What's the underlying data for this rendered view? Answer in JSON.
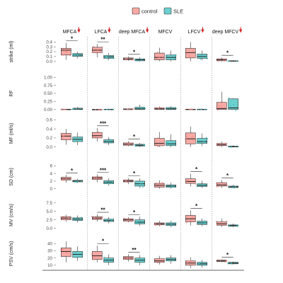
{
  "chart_data": {
    "type": "box",
    "legend": {
      "position": "top",
      "entries": [
        {
          "name": "control",
          "color": "#F8A9A4"
        },
        {
          "name": "SLE",
          "color": "#6CCFCF"
        }
      ]
    },
    "down_arrow_color": "#D62728",
    "columns": [
      {
        "label": "MFCA",
        "arrow": true
      },
      {
        "label": "LFCA",
        "arrow": true
      },
      {
        "label": "deep MFCA",
        "arrow": true
      },
      {
        "label": "MFCV",
        "arrow": false
      },
      {
        "label": "LFCV",
        "arrow": true
      },
      {
        "label": "deep MFCV",
        "arrow": true
      }
    ],
    "rows": [
      {
        "label": "strike (ml)",
        "ylim": [
          -0.05,
          0.45
        ],
        "ticks": [
          "0.0",
          "0.1",
          "0.2",
          "0.3",
          "0.4"
        ],
        "tick_values": [
          0.0,
          0.1,
          0.2,
          0.3,
          0.4
        ],
        "panels": [
          {
            "control": [
              0.03,
              0.13,
              0.23,
              0.27,
              0.38
            ],
            "SLE": [
              0.06,
              0.1,
              0.13,
              0.16,
              0.2
            ],
            "sig": "*"
          },
          {
            "control": [
              0.08,
              0.18,
              0.23,
              0.29,
              0.36
            ],
            "SLE": [
              0.02,
              0.06,
              0.09,
              0.12,
              0.17
            ],
            "sig": "**"
          },
          {
            "control": [
              0.01,
              0.03,
              0.05,
              0.07,
              0.1
            ],
            "SLE": [
              0.0,
              0.01,
              0.03,
              0.05,
              0.08
            ],
            "sig": "*"
          },
          {
            "control": [
              0.0,
              0.03,
              0.08,
              0.17,
              0.28
            ],
            "SLE": [
              0.0,
              0.03,
              0.08,
              0.13,
              0.22
            ],
            "sig": ""
          },
          {
            "control": [
              0.0,
              0.07,
              0.18,
              0.27,
              0.4
            ],
            "SLE": [
              0.02,
              0.06,
              0.1,
              0.15,
              0.22
            ],
            "sig": ""
          },
          {
            "control": [
              0.0,
              0.01,
              0.03,
              0.05,
              0.08
            ],
            "SLE": [
              0.0,
              0.0,
              0.005,
              0.01,
              0.02
            ],
            "sig": "*"
          }
        ]
      },
      {
        "label": "RF",
        "ylim": [
          -0.05,
          1.05
        ],
        "ticks": [
          "0.00",
          "0.25",
          "0.50",
          "0.75",
          "1.00"
        ],
        "tick_values": [
          0.0,
          0.25,
          0.5,
          0.75,
          1.0
        ],
        "panels": [
          {
            "control": [
              0.0,
              0.0,
              0.0,
              0.01,
              0.02
            ],
            "SLE": [
              0.0,
              0.0,
              0.01,
              0.04,
              0.08
            ],
            "sig": ""
          },
          {
            "control": [
              0.0,
              0.0,
              0.0,
              0.0,
              0.01
            ],
            "SLE": [
              0.0,
              0.0,
              0.0,
              0.01,
              0.02
            ],
            "sig": ""
          },
          {
            "control": [
              0.0,
              0.0,
              0.0,
              0.02,
              0.04
            ],
            "SLE": [
              0.0,
              0.0,
              0.02,
              0.07,
              0.15
            ],
            "sig": ""
          },
          {
            "control": [
              0.0,
              0.0,
              0.02,
              0.05,
              0.09
            ],
            "SLE": [
              0.0,
              0.0,
              0.02,
              0.06,
              0.1
            ],
            "sig": ""
          },
          {
            "control": [
              0.0,
              0.0,
              0.0,
              0.01,
              0.02
            ],
            "SLE": [
              0.0,
              0.0,
              0.0,
              0.01,
              0.02
            ],
            "sig": ""
          },
          {
            "control": [
              0.0,
              0.0,
              0.03,
              0.22,
              0.55
            ],
            "SLE": [
              0.0,
              0.0,
              0.05,
              0.33,
              0.35
            ],
            "sig": ""
          }
        ]
      },
      {
        "label": "MF (ml/s)",
        "ylim": [
          -0.05,
          0.65
        ],
        "ticks": [
          "0.0",
          "0.2",
          "0.4",
          "0.6"
        ],
        "tick_values": [
          0.0,
          0.2,
          0.4,
          0.6
        ],
        "panels": [
          {
            "control": [
              0.05,
              0.16,
              0.24,
              0.3,
              0.4
            ],
            "SLE": [
              0.04,
              0.12,
              0.17,
              0.22,
              0.32
            ],
            "sig": ""
          },
          {
            "control": [
              0.12,
              0.2,
              0.25,
              0.32,
              0.42
            ],
            "SLE": [
              0.04,
              0.09,
              0.12,
              0.16,
              0.22
            ],
            "sig": "***"
          },
          {
            "control": [
              0.02,
              0.04,
              0.06,
              0.09,
              0.13
            ],
            "SLE": [
              0.0,
              0.02,
              0.04,
              0.06,
              0.09
            ],
            "sig": "*"
          },
          {
            "control": [
              0.0,
              0.03,
              0.08,
              0.19,
              0.33
            ],
            "SLE": [
              0.0,
              0.03,
              0.07,
              0.14,
              0.28
            ],
            "sig": ""
          },
          {
            "control": [
              0.0,
              0.07,
              0.18,
              0.31,
              0.45
            ],
            "SLE": [
              0.02,
              0.08,
              0.12,
              0.19,
              0.3
            ],
            "sig": ""
          },
          {
            "control": [
              0.0,
              0.03,
              0.05,
              0.08,
              0.12
            ],
            "SLE": [
              0.0,
              0.0,
              0.01,
              0.02,
              0.03
            ],
            "sig": ""
          }
        ]
      },
      {
        "label": "SD (cm)",
        "ylim": [
          -0.6,
          6.8
        ],
        "ticks": [
          "0",
          "2",
          "4",
          "6"
        ],
        "tick_values": [
          0,
          2,
          4,
          6
        ],
        "panels": [
          {
            "control": [
              1.6,
              2.3,
              2.6,
              3.0,
              3.6
            ],
            "SLE": [
              1.5,
              1.8,
              2.0,
              2.2,
              2.6
            ],
            "sig": "*"
          },
          {
            "control": [
              1.7,
              2.4,
              2.8,
              3.1,
              3.7
            ],
            "SLE": [
              0.8,
              1.3,
              1.7,
              2.1,
              2.7
            ],
            "sig": "***"
          },
          {
            "control": [
              1.2,
              1.8,
              2.0,
              2.3,
              2.8
            ],
            "SLE": [
              0.2,
              0.7,
              1.3,
              2.0,
              2.7
            ],
            "sig": "*"
          },
          {
            "control": [
              0.0,
              0.4,
              0.9,
              1.4,
              2.2
            ],
            "SLE": [
              0.1,
              0.4,
              0.7,
              1.0,
              1.6
            ],
            "sig": ""
          },
          {
            "control": [
              0.6,
              1.4,
              1.9,
              2.6,
              3.9
            ],
            "SLE": [
              0.2,
              0.6,
              0.9,
              1.3,
              2.1
            ],
            "sig": "*"
          },
          {
            "control": [
              0.2,
              0.7,
              1.0,
              1.6,
              2.3
            ],
            "SLE": [
              0.1,
              0.3,
              0.5,
              0.7,
              1.0
            ],
            "sig": "*"
          }
        ]
      },
      {
        "label": "MV (cm/s)",
        "ylim": [
          -0.5,
          8.3
        ],
        "ticks": [
          "0.0",
          "2.5",
          "5.0",
          "7.5"
        ],
        "tick_values": [
          0,
          2.5,
          5.0,
          7.5
        ],
        "panels": [
          {
            "control": [
              2.0,
              2.5,
              3.0,
              3.4,
              4.0
            ],
            "SLE": [
              1.7,
              2.3,
              2.7,
              3.1,
              3.8
            ],
            "sig": ""
          },
          {
            "control": [
              2.0,
              2.6,
              3.0,
              3.4,
              4.1
            ],
            "SLE": [
              1.4,
              2.0,
              2.3,
              2.7,
              3.3
            ],
            "sig": "**"
          },
          {
            "control": [
              1.7,
              2.1,
              2.5,
              2.8,
              3.3
            ],
            "SLE": [
              0.7,
              1.3,
              1.8,
              2.5,
              3.4
            ],
            "sig": "*"
          },
          {
            "control": [
              0.6,
              1.0,
              1.3,
              1.6,
              2.2
            ],
            "SLE": [
              0.4,
              0.8,
              1.2,
              1.6,
              2.2
            ],
            "sig": ""
          },
          {
            "control": [
              0.8,
              1.9,
              2.8,
              3.8,
              5.3
            ],
            "SLE": [
              0.6,
              1.1,
              1.6,
              2.1,
              2.9
            ],
            "sig": "*"
          },
          {
            "control": [
              0.4,
              0.9,
              1.3,
              1.9,
              2.9
            ],
            "SLE": [
              0.3,
              0.6,
              0.8,
              1.0,
              1.4
            ],
            "sig": ""
          }
        ]
      },
      {
        "label": "PSV (cm/s)",
        "ylim": [
          5,
          47
        ],
        "ticks": [
          "10",
          "20",
          "30",
          "40"
        ],
        "tick_values": [
          10,
          20,
          30,
          40
        ],
        "panels": [
          {
            "control": [
              14,
              22,
              29,
              34,
              43
            ],
            "SLE": [
              16,
              21,
              25,
              29,
              36
            ],
            "sig": ""
          },
          {
            "control": [
              14,
              18,
              23,
              29,
              37
            ],
            "SLE": [
              10,
              14,
              17,
              20,
              25
            ],
            "sig": "*"
          },
          {
            "control": [
              15,
              18,
              20,
              22,
              25
            ],
            "SLE": [
              10,
              14,
              17,
              20,
              24
            ],
            "sig": "**"
          },
          {
            "control": [
              11,
              14,
              16,
              19,
              23
            ],
            "SLE": [
              12,
              16,
              18,
              20,
              24
            ],
            "sig": ""
          },
          {
            "control": [
              6,
              10,
              13,
              16,
              21
            ],
            "SLE": [
              7,
              10,
              12,
              14,
              17
            ],
            "sig": ""
          },
          {
            "control": [
              14,
              15,
              16,
              17,
              18
            ],
            "SLE": [
              11,
              12,
              13,
              14,
              15
            ],
            "sig": "*"
          }
        ]
      }
    ]
  }
}
